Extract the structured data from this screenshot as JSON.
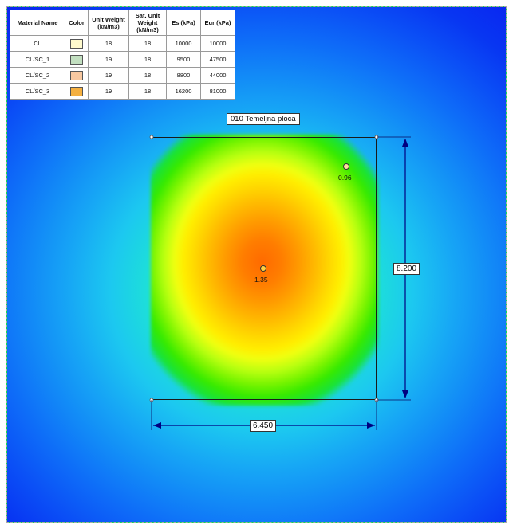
{
  "table": {
    "headers": {
      "name": "Material Name",
      "color": "Color",
      "unit_weight": "Unit Weight (kN/m3)",
      "sat_weight": "Sat. Unit Weight (kN/m3)",
      "es": "Es (kPa)",
      "eur": "Eur (kPa)"
    },
    "rows": [
      {
        "name": "CL",
        "color": "#fffacd",
        "unit_weight": "18",
        "sat_weight": "18",
        "es": "10000",
        "eur": "10000"
      },
      {
        "name": "CL/SC_1",
        "color": "#c2dfc0",
        "unit_weight": "19",
        "sat_weight": "18",
        "es": "9500",
        "eur": "47500"
      },
      {
        "name": "CL/SC_2",
        "color": "#f8c8a0",
        "unit_weight": "19",
        "sat_weight": "18",
        "es": "8800",
        "eur": "44000"
      },
      {
        "name": "CL/SC_3",
        "color": "#f5b040",
        "unit_weight": "19",
        "sat_weight": "18",
        "es": "16200",
        "eur": "81000"
      }
    ]
  },
  "footing": {
    "label": "010 Temeljna ploca",
    "width_dim": "6.450",
    "height_dim": "8.200"
  },
  "points": [
    {
      "value": "1.35",
      "fill": "#ffd040"
    },
    {
      "value": "0.96",
      "fill": "#ffe0a0"
    }
  ],
  "colors": {
    "contour_min": "#0a22f0",
    "contour_max": "#ff6a00",
    "dimension_line": "#000080"
  }
}
